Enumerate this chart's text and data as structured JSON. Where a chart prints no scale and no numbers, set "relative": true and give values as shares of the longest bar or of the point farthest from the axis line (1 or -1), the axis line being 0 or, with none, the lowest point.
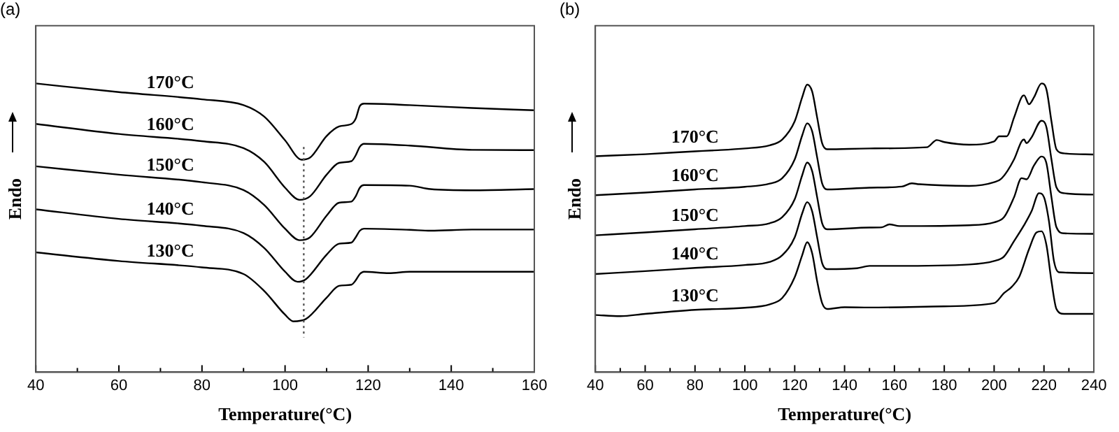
{
  "chart_data": [
    {
      "type": "line",
      "title": "(a)",
      "xlabel": "Temperature(°C)",
      "ylabel": "Endo",
      "relative": true,
      "tick_labels": "x",
      "marker": "none",
      "xlim": [
        40,
        160
      ],
      "xticks": [
        40,
        {
          "value": 50,
          "label": null
        },
        60,
        {
          "value": 70,
          "label": null
        },
        80,
        {
          "value": 90,
          "label": null
        },
        100,
        {
          "value": 110,
          "label": null
        },
        120,
        {
          "value": 130,
          "label": null
        },
        140,
        {
          "value": 150,
          "label": null
        },
        160
      ],
      "ref_lines": [
        {
          "axis": "x",
          "value": 104.5,
          "line_style": "dotted"
        }
      ],
      "series": [
        {
          "name": "170°C",
          "color": "#000000",
          "x": [
            40,
            60,
            80,
            90,
            95,
            100,
            104,
            106,
            110,
            113,
            116,
            117,
            118,
            119,
            130,
            145,
            160
          ],
          "values": [
            1.0,
            0.97,
            0.945,
            0.925,
            0.885,
            0.803,
            0.736,
            0.743,
            0.818,
            0.851,
            0.86,
            0.878,
            0.922,
            0.93,
            0.925,
            0.915,
            0.907
          ]
        },
        {
          "name": "160°C",
          "color": "#000000",
          "x": [
            40,
            60,
            80,
            90,
            95,
            100,
            103.5,
            106,
            110,
            113,
            116,
            117,
            118,
            119,
            130,
            145,
            160
          ],
          "values": [
            0.86,
            0.825,
            0.8,
            0.776,
            0.728,
            0.639,
            0.597,
            0.609,
            0.684,
            0.725,
            0.731,
            0.751,
            0.781,
            0.791,
            0.785,
            0.77,
            0.769
          ]
        },
        {
          "name": "150°C",
          "color": "#000000",
          "x": [
            40,
            60,
            80,
            90,
            95,
            100,
            103.5,
            106,
            110,
            113,
            116,
            117,
            118,
            119,
            130,
            135,
            145,
            160
          ],
          "values": [
            0.713,
            0.684,
            0.658,
            0.631,
            0.579,
            0.497,
            0.457,
            0.467,
            0.542,
            0.587,
            0.591,
            0.609,
            0.639,
            0.648,
            0.646,
            0.634,
            0.63,
            0.634
          ]
        },
        {
          "name": "140°C",
          "color": "#000000",
          "x": [
            40,
            60,
            80,
            90,
            95,
            100,
            103,
            105,
            110,
            113,
            116,
            117,
            118,
            119,
            130,
            135,
            145,
            160
          ],
          "values": [
            0.564,
            0.531,
            0.507,
            0.482,
            0.43,
            0.348,
            0.313,
            0.322,
            0.407,
            0.445,
            0.449,
            0.467,
            0.49,
            0.497,
            0.493,
            0.49,
            0.494,
            0.494
          ]
        },
        {
          "name": "130°C",
          "color": "#000000",
          "x": [
            40,
            60,
            80,
            90,
            95,
            100,
            102,
            105,
            110,
            113,
            116,
            117,
            118,
            119,
            125,
            130,
            160
          ],
          "values": [
            0.415,
            0.385,
            0.363,
            0.34,
            0.281,
            0.199,
            0.176,
            0.184,
            0.258,
            0.299,
            0.303,
            0.318,
            0.34,
            0.348,
            0.343,
            0.348,
            0.348
          ]
        }
      ]
    },
    {
      "type": "line",
      "title": "(b)",
      "xlabel": "Temperature(°C)",
      "ylabel": "Endo",
      "relative": true,
      "tick_labels": "x",
      "marker": "none",
      "xlim": [
        40,
        240
      ],
      "xticks": [
        40,
        {
          "value": 50,
          "label": null
        },
        60,
        {
          "value": 70,
          "label": null
        },
        80,
        {
          "value": 90,
          "label": null
        },
        100,
        {
          "value": 110,
          "label": null
        },
        120,
        {
          "value": 130,
          "label": null
        },
        140,
        {
          "value": 150,
          "label": null
        },
        160,
        {
          "value": 170,
          "label": null
        },
        180,
        {
          "value": 190,
          "label": null
        },
        200,
        {
          "value": 210,
          "label": null
        },
        220,
        {
          "value": 230,
          "label": null
        },
        240
      ],
      "series": [
        {
          "name": "170°C",
          "color": "#000000",
          "x": [
            40,
            60,
            80,
            87,
            100,
            110,
            115,
            120,
            123,
            125,
            127,
            129,
            131,
            133,
            150,
            173,
            177,
            180,
            190,
            200,
            202,
            205,
            208,
            211,
            212,
            214,
            216,
            219,
            221,
            223,
            225,
            228,
            240
          ],
          "values": [
            0.748,
            0.755,
            0.765,
            0.768,
            0.775,
            0.786,
            0.806,
            0.869,
            0.952,
            0.996,
            0.972,
            0.882,
            0.793,
            0.772,
            0.775,
            0.779,
            0.804,
            0.797,
            0.788,
            0.799,
            0.817,
            0.817,
            0.882,
            0.952,
            0.959,
            0.928,
            0.952,
            1.0,
            0.979,
            0.869,
            0.772,
            0.758,
            0.754
          ]
        },
        {
          "name": "160°C",
          "color": "#000000",
          "x": [
            40,
            60,
            80,
            100,
            110,
            115,
            120,
            123,
            125,
            127,
            129,
            131,
            133,
            150,
            163,
            167,
            170,
            190,
            200,
            203,
            208,
            211,
            212,
            213,
            215,
            219,
            221,
            223,
            225,
            228,
            240
          ],
          "values": [
            0.613,
            0.622,
            0.633,
            0.642,
            0.653,
            0.672,
            0.737,
            0.82,
            0.862,
            0.834,
            0.744,
            0.654,
            0.633,
            0.639,
            0.643,
            0.654,
            0.651,
            0.645,
            0.658,
            0.671,
            0.737,
            0.799,
            0.806,
            0.793,
            0.813,
            0.871,
            0.848,
            0.737,
            0.64,
            0.62,
            0.615
          ]
        },
        {
          "name": "150°C",
          "color": "#000000",
          "x": [
            40,
            60,
            80,
            100,
            110,
            115,
            120,
            123,
            125,
            127,
            129,
            131,
            133,
            150,
            155,
            158,
            162,
            190,
            200,
            204,
            208,
            211,
            213,
            216,
            219,
            221,
            223,
            225,
            228,
            240
          ],
          "values": [
            0.474,
            0.484,
            0.495,
            0.506,
            0.516,
            0.537,
            0.599,
            0.682,
            0.726,
            0.696,
            0.606,
            0.516,
            0.495,
            0.501,
            0.502,
            0.512,
            0.506,
            0.509,
            0.519,
            0.537,
            0.606,
            0.672,
            0.668,
            0.716,
            0.747,
            0.723,
            0.606,
            0.502,
            0.481,
            0.479
          ]
        },
        {
          "name": "140°C",
          "color": "#000000",
          "x": [
            40,
            60,
            80,
            100,
            110,
            115,
            120,
            123,
            125,
            127,
            129,
            131,
            133,
            145,
            150,
            160,
            190,
            200,
            204,
            208,
            212,
            215,
            218,
            220,
            222,
            224,
            226,
            240
          ],
          "values": [
            0.34,
            0.35,
            0.361,
            0.371,
            0.382,
            0.405,
            0.467,
            0.55,
            0.589,
            0.557,
            0.467,
            0.378,
            0.357,
            0.36,
            0.368,
            0.368,
            0.373,
            0.385,
            0.401,
            0.454,
            0.509,
            0.557,
            0.62,
            0.606,
            0.523,
            0.385,
            0.346,
            0.343
          ]
        },
        {
          "name": "130°C",
          "color": "#000000",
          "x": [
            40,
            50,
            60,
            80,
            100,
            110,
            115,
            120,
            123,
            125,
            127,
            129,
            131,
            133,
            140,
            150,
            180,
            200,
            204,
            207,
            210,
            214,
            217,
            219,
            221,
            223,
            225,
            228,
            240
          ],
          "values": [
            0.198,
            0.194,
            0.202,
            0.216,
            0.223,
            0.235,
            0.257,
            0.329,
            0.405,
            0.45,
            0.412,
            0.315,
            0.239,
            0.219,
            0.225,
            0.224,
            0.228,
            0.239,
            0.274,
            0.295,
            0.329,
            0.426,
            0.484,
            0.488,
            0.44,
            0.315,
            0.219,
            0.202,
            0.202
          ]
        }
      ]
    }
  ]
}
